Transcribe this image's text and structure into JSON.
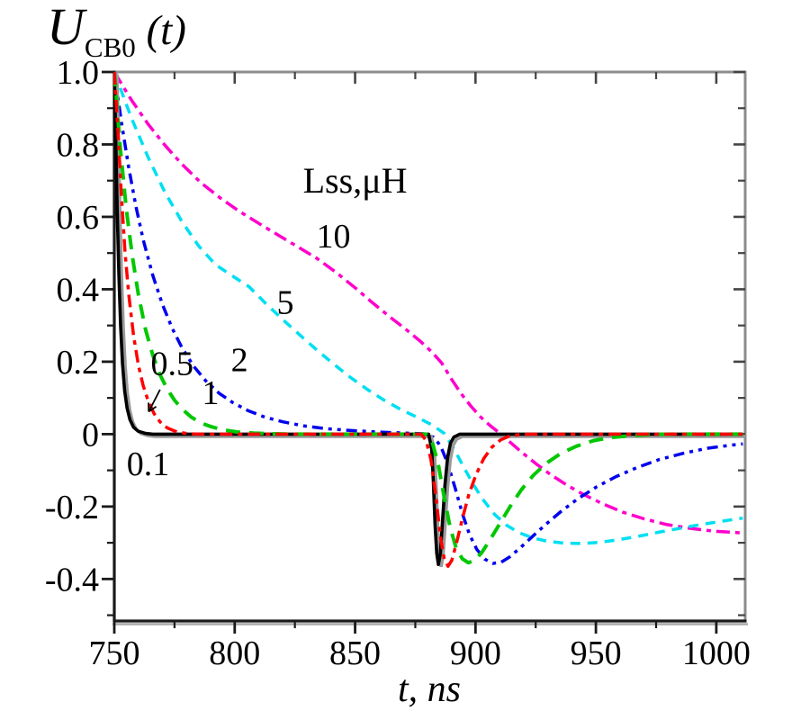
{
  "figure": {
    "title": {
      "var": "U",
      "sub": "CB0",
      "func": " (t)"
    },
    "xlabel": "t, ns",
    "background": "#ffffff"
  },
  "axes": {
    "x": {
      "major": [
        750,
        800,
        850,
        900,
        950,
        1000
      ],
      "major_labels": [
        "750",
        "800",
        "850",
        "900",
        "950",
        "1000"
      ],
      "minor": [
        775,
        825,
        875,
        925,
        975
      ]
    },
    "y": {
      "major": [
        1.0,
        0.8,
        0.6,
        0.4,
        0.2,
        0,
        -0.2,
        -0.4
      ],
      "major_labels": [
        "1.0",
        "0.8",
        "0.6",
        "0.4",
        "0.2",
        "0",
        "-0.2",
        "-0.4"
      ],
      "minor": [
        0.9,
        0.7,
        0.5,
        0.3,
        0.1,
        -0.1,
        -0.3,
        -0.5
      ]
    },
    "colors": {
      "bottom_left_axis": "#1a1a1a",
      "top_right_axis": "#8c8c8c",
      "tick": "#1a1a1a",
      "mirror_tick": "#444444",
      "axis_shadow": "#aaaaaa"
    }
  },
  "chart_data": {
    "type": "line",
    "title": "U_CB0 (t)",
    "xlabel": "t, ns",
    "ylabel": "U_CB0",
    "xlim": [
      750,
      1012
    ],
    "ylim": [
      -0.516,
      1.0
    ],
    "grid": false,
    "legend_text": "Lss,μH",
    "series": [
      {
        "name": "Lss=10",
        "lss_label": "10",
        "lss_uH": 10,
        "color": "#ff00cc",
        "dash": "15 6 5 6",
        "width": 3.5,
        "shadow": false,
        "points": [
          [
            750,
            1
          ],
          [
            757,
            0.924
          ],
          [
            764,
            0.856
          ],
          [
            771,
            0.798
          ],
          [
            778,
            0.746
          ],
          [
            786,
            0.694
          ],
          [
            794,
            0.652
          ],
          [
            802,
            0.615
          ],
          [
            810,
            0.582
          ],
          [
            818,
            0.55
          ],
          [
            826,
            0.518
          ],
          [
            834,
            0.486
          ],
          [
            842,
            0.447
          ],
          [
            850,
            0.404
          ],
          [
            857,
            0.364
          ],
          [
            864,
            0.326
          ],
          [
            871,
            0.29
          ],
          [
            877,
            0.257
          ],
          [
            882,
            0.226
          ],
          [
            886,
            0.196
          ],
          [
            890,
            0.152
          ],
          [
            894,
            0.112
          ],
          [
            898,
            0.078
          ],
          [
            902,
            0.048
          ],
          [
            906,
            0.024
          ],
          [
            910,
            0.003
          ],
          [
            914,
            -0.02
          ],
          [
            919,
            -0.049
          ],
          [
            925,
            -0.081
          ],
          [
            931,
            -0.111
          ],
          [
            938,
            -0.141
          ],
          [
            945,
            -0.167
          ],
          [
            953,
            -0.193
          ],
          [
            961,
            -0.215
          ],
          [
            970,
            -0.234
          ],
          [
            979,
            -0.249
          ],
          [
            989,
            -0.26
          ],
          [
            999,
            -0.268
          ],
          [
            1011,
            -0.273
          ]
        ]
      },
      {
        "name": "Lss=5",
        "lss_label": "5",
        "lss_uH": 5,
        "color": "#00dff2",
        "dash": "11 8",
        "width": 3.5,
        "shadow": false,
        "points": [
          [
            750,
            1
          ],
          [
            757,
            0.875
          ],
          [
            764,
            0.765
          ],
          [
            771,
            0.668
          ],
          [
            778,
            0.588
          ],
          [
            785,
            0.52
          ],
          [
            792,
            0.468
          ],
          [
            799,
            0.437
          ],
          [
            806,
            0.407
          ],
          [
            813,
            0.36
          ],
          [
            820,
            0.316
          ],
          [
            827,
            0.274
          ],
          [
            834,
            0.233
          ],
          [
            841,
            0.194
          ],
          [
            848,
            0.157
          ],
          [
            855,
            0.124
          ],
          [
            862,
            0.094
          ],
          [
            869,
            0.068
          ],
          [
            876,
            0.046
          ],
          [
            882,
            0.025
          ],
          [
            887,
            0.002
          ],
          [
            891,
            -0.04
          ],
          [
            895,
            -0.09
          ],
          [
            899,
            -0.138
          ],
          [
            903,
            -0.18
          ],
          [
            908,
            -0.222
          ],
          [
            913,
            -0.252
          ],
          [
            918,
            -0.272
          ],
          [
            924,
            -0.287
          ],
          [
            930,
            -0.296
          ],
          [
            937,
            -0.301
          ],
          [
            944,
            -0.302
          ],
          [
            951,
            -0.299
          ],
          [
            959,
            -0.292
          ],
          [
            967,
            -0.283
          ],
          [
            976,
            -0.271
          ],
          [
            985,
            -0.26
          ],
          [
            994,
            -0.249
          ],
          [
            1003,
            -0.24
          ],
          [
            1011,
            -0.232
          ]
        ]
      },
      {
        "name": "Lss=2",
        "lss_label": "2",
        "lss_uH": 2,
        "color": "#0000ee",
        "dash": "12 6 4 6 4 6",
        "width": 3.5,
        "shadow": false,
        "points": [
          [
            750,
            1
          ],
          [
            753,
            0.86
          ],
          [
            756,
            0.735
          ],
          [
            759,
            0.628
          ],
          [
            762,
            0.537
          ],
          [
            766,
            0.438
          ],
          [
            770,
            0.358
          ],
          [
            774,
            0.293
          ],
          [
            778,
            0.24
          ],
          [
            783,
            0.187
          ],
          [
            788,
            0.147
          ],
          [
            793.5,
            0.113
          ],
          [
            799,
            0.088
          ],
          [
            805.5,
            0.065
          ],
          [
            812.5,
            0.047
          ],
          [
            820,
            0.034
          ],
          [
            828.5,
            0.023
          ],
          [
            838,
            0.015
          ],
          [
            848.5,
            0.01
          ],
          [
            859.5,
            0.006
          ],
          [
            871,
            0.003
          ],
          [
            878.5,
            0.001
          ],
          [
            882.5,
            -0.008
          ],
          [
            885.5,
            -0.032
          ],
          [
            888.5,
            -0.082
          ],
          [
            891.5,
            -0.148
          ],
          [
            894.5,
            -0.218
          ],
          [
            897.5,
            -0.277
          ],
          [
            900.5,
            -0.318
          ],
          [
            903.8,
            -0.345
          ],
          [
            907.2,
            -0.357
          ],
          [
            910.6,
            -0.354
          ],
          [
            914.2,
            -0.339
          ],
          [
            918.6,
            -0.314
          ],
          [
            923.6,
            -0.283
          ],
          [
            929.2,
            -0.249
          ],
          [
            935.4,
            -0.214
          ],
          [
            942.4,
            -0.179
          ],
          [
            950.2,
            -0.146
          ],
          [
            958.4,
            -0.117
          ],
          [
            967.2,
            -0.092
          ],
          [
            976.4,
            -0.07
          ],
          [
            986.2,
            -0.053
          ],
          [
            996.2,
            -0.039
          ],
          [
            1005.5,
            -0.031
          ],
          [
            1011,
            -0.027
          ]
        ]
      },
      {
        "name": "Lss=0.1",
        "lss_label": "0.1",
        "lss_uH": 0.1,
        "color": "#000000",
        "dash": "",
        "width": 3.6,
        "shadow": true,
        "points": [
          [
            750,
            1
          ],
          [
            750.6,
            0.82
          ],
          [
            751.2,
            0.62
          ],
          [
            751.9,
            0.44
          ],
          [
            752.6,
            0.3
          ],
          [
            753.4,
            0.195
          ],
          [
            754.3,
            0.12
          ],
          [
            755.3,
            0.072
          ],
          [
            756.5,
            0.04
          ],
          [
            758,
            0.019
          ],
          [
            760,
            0.008
          ],
          [
            763,
            0.002
          ],
          [
            766,
            0
          ],
          [
            880.5,
            0
          ],
          [
            881.8,
            -0.04
          ],
          [
            882.5,
            -0.13
          ],
          [
            883.2,
            -0.25
          ],
          [
            883.9,
            -0.33
          ],
          [
            884.6,
            -0.36
          ],
          [
            885.4,
            -0.33
          ],
          [
            886.3,
            -0.24
          ],
          [
            887.3,
            -0.14
          ],
          [
            888.4,
            -0.065
          ],
          [
            889.6,
            -0.025
          ],
          [
            891,
            -0.008
          ],
          [
            893.5,
            0
          ],
          [
            1011,
            0
          ]
        ]
      },
      {
        "name": "Lss=1",
        "lss_label": "1",
        "lss_uH": 1,
        "color": "#00c800",
        "dash": "16 10",
        "width": 4,
        "shadow": false,
        "points": [
          [
            750,
            1
          ],
          [
            752.5,
            0.79
          ],
          [
            755,
            0.62
          ],
          [
            757.5,
            0.49
          ],
          [
            760,
            0.385
          ],
          [
            763,
            0.288
          ],
          [
            766,
            0.218
          ],
          [
            769,
            0.164
          ],
          [
            772,
            0.124
          ],
          [
            775,
            0.094
          ],
          [
            778,
            0.07
          ],
          [
            782,
            0.047
          ],
          [
            786,
            0.031
          ],
          [
            790,
            0.021
          ],
          [
            795,
            0.012
          ],
          [
            801,
            0.006
          ],
          [
            808,
            0.003
          ],
          [
            816,
            0.001
          ],
          [
            824,
            0
          ],
          [
            879.5,
            0
          ],
          [
            882,
            -0.022
          ],
          [
            884.5,
            -0.082
          ],
          [
            887,
            -0.175
          ],
          [
            889.5,
            -0.258
          ],
          [
            892,
            -0.315
          ],
          [
            894.5,
            -0.344
          ],
          [
            897,
            -0.355
          ],
          [
            899.6,
            -0.349
          ],
          [
            902.6,
            -0.327
          ],
          [
            906,
            -0.292
          ],
          [
            910,
            -0.248
          ],
          [
            914.5,
            -0.199
          ],
          [
            919,
            -0.154
          ],
          [
            924,
            -0.114
          ],
          [
            929.5,
            -0.08
          ],
          [
            935.5,
            -0.053
          ],
          [
            942,
            -0.033
          ],
          [
            949,
            -0.018
          ],
          [
            956.5,
            -0.009
          ],
          [
            964.5,
            -0.004
          ],
          [
            973,
            -0.001
          ],
          [
            983,
            0
          ],
          [
            1011,
            0
          ]
        ]
      },
      {
        "name": "Lss=0.5",
        "lss_label": "0.5",
        "lss_uH": 0.5,
        "color": "#ff0000",
        "dash": "14 6 5 6",
        "width": 3.5,
        "shadow": false,
        "points": [
          [
            750,
            1
          ],
          [
            751.5,
            0.84
          ],
          [
            753,
            0.655
          ],
          [
            754.5,
            0.5
          ],
          [
            756,
            0.385
          ],
          [
            758,
            0.272
          ],
          [
            760,
            0.19
          ],
          [
            762,
            0.134
          ],
          [
            764,
            0.093
          ],
          [
            766.5,
            0.057
          ],
          [
            769,
            0.034
          ],
          [
            772,
            0.017
          ],
          [
            776,
            0.006
          ],
          [
            781,
            0.001
          ],
          [
            786,
            0
          ],
          [
            877.5,
            0
          ],
          [
            879.5,
            -0.018
          ],
          [
            881.5,
            -0.07
          ],
          [
            883.5,
            -0.17
          ],
          [
            885.5,
            -0.285
          ],
          [
            887,
            -0.345
          ],
          [
            888.6,
            -0.365
          ],
          [
            890.2,
            -0.348
          ],
          [
            892.2,
            -0.298
          ],
          [
            894.6,
            -0.232
          ],
          [
            897.2,
            -0.168
          ],
          [
            900.2,
            -0.112
          ],
          [
            903.4,
            -0.068
          ],
          [
            906.8,
            -0.036
          ],
          [
            910.4,
            -0.016
          ],
          [
            914.2,
            -0.005
          ],
          [
            918.5,
            -0.001
          ],
          [
            923,
            0
          ],
          [
            1011,
            0
          ]
        ]
      }
    ],
    "annotations": [
      {
        "id": "legend-text",
        "text": "Lss,μH",
        "t": 850,
        "v": 0.7,
        "size": 40
      },
      {
        "id": "label-lss-10",
        "text": "10",
        "t": 841,
        "v": 0.545,
        "size": 38
      },
      {
        "id": "label-lss-5",
        "text": "5",
        "t": 821,
        "v": 0.362,
        "size": 38
      },
      {
        "id": "label-lss-2",
        "text": "2",
        "t": 802,
        "v": 0.203,
        "size": 38
      },
      {
        "id": "label-lss-1",
        "text": "1",
        "t": 790,
        "v": 0.113,
        "size": 38
      },
      {
        "id": "label-lss-0.5",
        "text": "0.5",
        "t": 774,
        "v": 0.193,
        "size": 38
      },
      {
        "id": "label-lss-0.1",
        "text": "0.1",
        "t": 764,
        "v": -0.084,
        "size": 38
      }
    ],
    "arrow": {
      "from_t": 769,
      "from_v": 0.123,
      "to_t": 764.3,
      "to_v": 0.062
    }
  }
}
